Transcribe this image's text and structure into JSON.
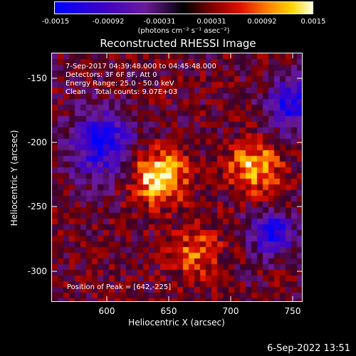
{
  "chart_data": {
    "type": "heatmap",
    "title": "Reconstructed RHESSI Image",
    "xlabel": "Heliocentric X (arcsec)",
    "ylabel": "Heliocentric Y (arcsec)",
    "xlim": [
      560,
      752
    ],
    "ylim": [
      -322,
      -130
    ],
    "x_ticks": [
      "600",
      "650",
      "700",
      "750"
    ],
    "y_ticks": [
      "-150",
      "-200",
      "-250",
      "-300"
    ],
    "colorbar": {
      "ticks": [
        "-0.0015",
        "-0.00092",
        "-0.00031",
        "0.00031",
        "0.00092",
        "0.0015"
      ],
      "units": "(photons cm⁻² s⁻¹ asec⁻²)",
      "range": [
        -0.0015,
        0.0015
      ]
    },
    "annotations": {
      "time_range": "7-Sep-2017 04:39:48.000 to 04:45:48.000",
      "detectors": "Detectors: 3F 6F 8F, Att 0",
      "energy": "Energy Range: 25.0 - 50.0 keV",
      "clean": "Clean    Total counts: 9.07E+03",
      "peak": "Position of Peak = [642,-225]"
    },
    "sources": [
      {
        "x": 642,
        "y": -225,
        "relative_intensity": 1.0
      },
      {
        "x": 716,
        "y": -218,
        "relative_intensity": 0.75
      },
      {
        "x": 670,
        "y": -285,
        "relative_intensity": 0.5
      }
    ]
  },
  "footer": {
    "timestamp": "6-Sep-2022 13:51"
  },
  "colors": {
    "background": "#000000",
    "foreground": "#ffffff"
  }
}
